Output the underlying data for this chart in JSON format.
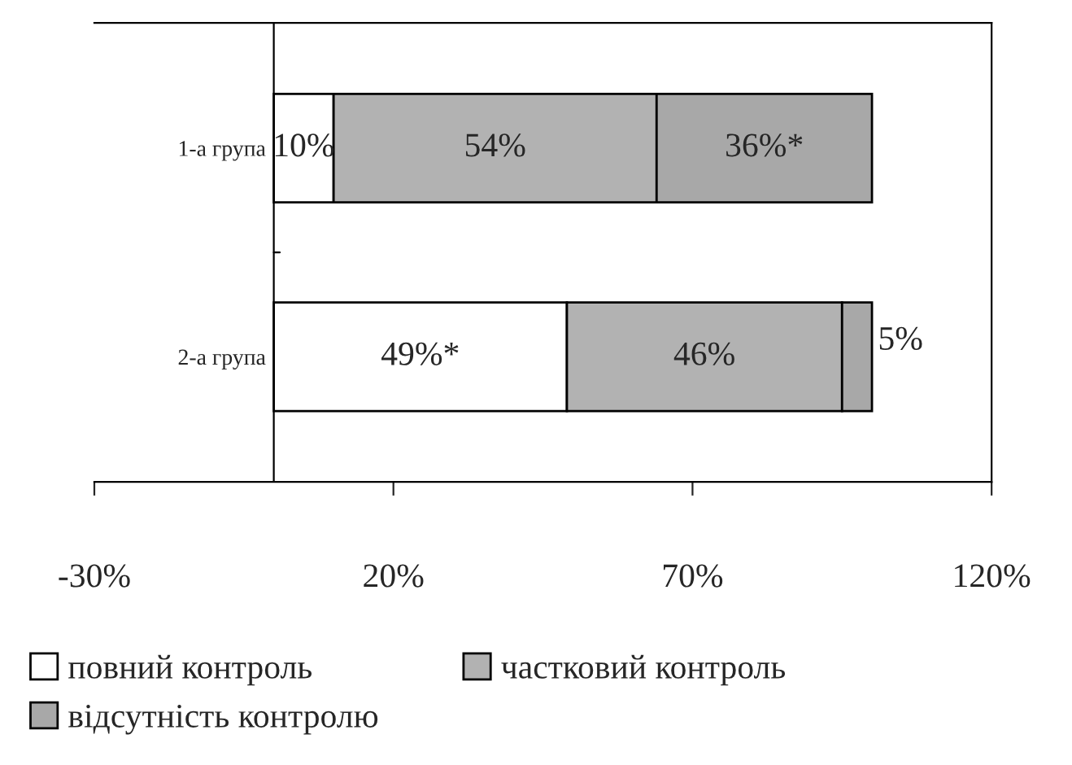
{
  "chart_data": {
    "type": "bar",
    "orientation": "horizontal",
    "stacked": true,
    "categories": [
      "1-а група",
      "2-а група"
    ],
    "series": [
      {
        "name": "повний контроль",
        "color": "#ffffff",
        "values": [
          10,
          49
        ],
        "value_labels": [
          "10%",
          "49%*"
        ]
      },
      {
        "name": "частковий контроль",
        "color": "#b2b2b2",
        "values": [
          54,
          46
        ],
        "value_labels": [
          "54%",
          "46%"
        ]
      },
      {
        "name": "відсутність контролю",
        "color": "#a8a8a8",
        "values": [
          36,
          5
        ],
        "value_labels": [
          "36%*",
          "5%"
        ]
      }
    ],
    "xlim": [
      -30,
      120
    ],
    "xticks": [
      {
        "value": -30,
        "label": "-30%"
      },
      {
        "value": 20,
        "label": "20%"
      },
      {
        "value": 70,
        "label": "70%"
      },
      {
        "value": 120,
        "label": "120%"
      }
    ],
    "legend": "bottom",
    "grid": false
  }
}
